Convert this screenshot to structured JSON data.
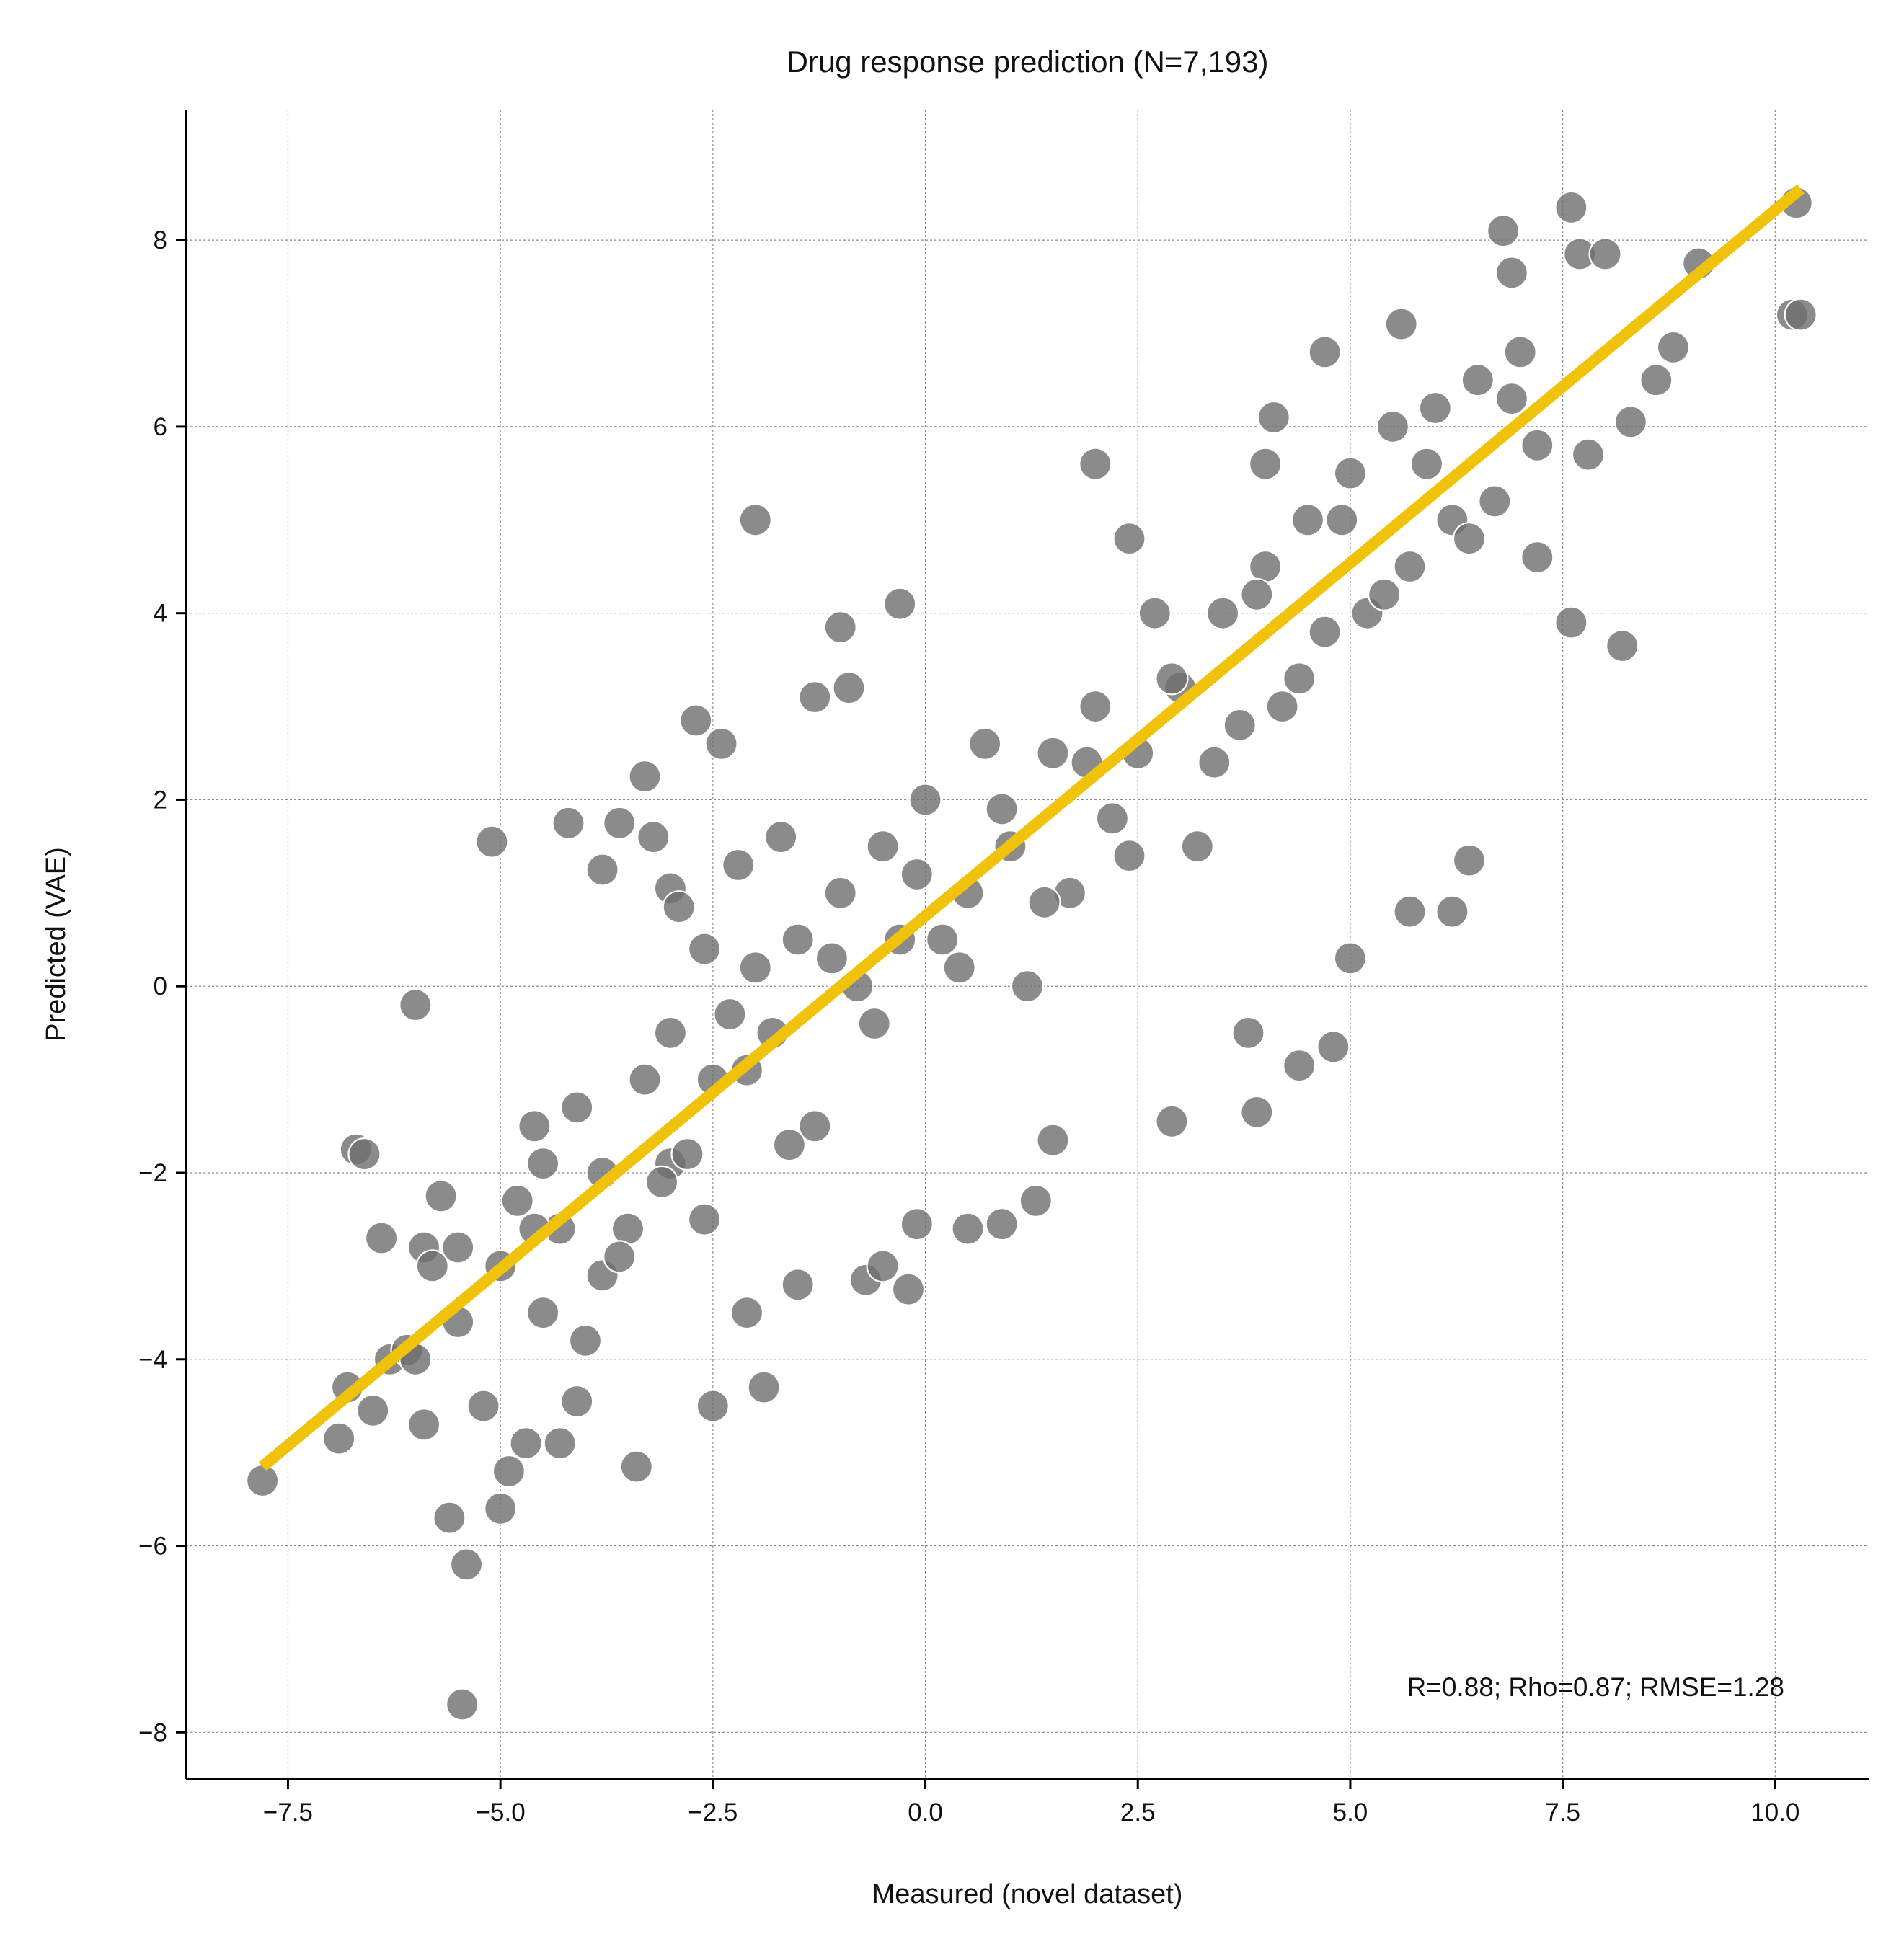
{
  "chart_data": {
    "type": "scatter",
    "title": "Drug response prediction (N=7,193)",
    "xlabel": "Measured (novel dataset)",
    "ylabel": "Predicted (VAE)",
    "xlim": [
      -8.7,
      11.1
    ],
    "ylim": [
      -8.5,
      9.4
    ],
    "x_ticks": [
      -7.5,
      -5.0,
      -2.5,
      0.0,
      2.5,
      5.0,
      7.5,
      10.0
    ],
    "x_tick_labels": [
      "−7.5",
      "−5.0",
      "−2.5",
      "0.0",
      "2.5",
      "5.0",
      "7.5",
      "10.0"
    ],
    "y_ticks": [
      -8,
      -6,
      -4,
      -2,
      0,
      2,
      4,
      6,
      8
    ],
    "y_tick_labels": [
      "−8",
      "−6",
      "−4",
      "−2",
      "0",
      "2",
      "4",
      "6",
      "8"
    ],
    "grid": true,
    "point_color": "#6e6e6e",
    "point_edge_color": "#ffffff",
    "line_color": "#f0c20a",
    "fit_line": {
      "x": [
        -7.8,
        10.3
      ],
      "y": [
        -5.15,
        8.55
      ]
    },
    "annotation": "R=0.88; Rho=0.87; RMSE=1.28",
    "annotation_position": "bottom-right",
    "series": [
      {
        "points": [
          [
            -7.8,
            -5.3
          ],
          [
            -6.9,
            -4.85
          ],
          [
            -6.8,
            -4.3
          ],
          [
            -6.7,
            -1.75
          ],
          [
            -6.6,
            -1.8
          ],
          [
            -6.5,
            -4.55
          ],
          [
            -6.4,
            -2.7
          ],
          [
            -6.3,
            -4.0
          ],
          [
            -6.1,
            -3.9
          ],
          [
            -6.0,
            -0.2
          ],
          [
            -5.9,
            -4.7
          ],
          [
            -5.9,
            -2.8
          ],
          [
            -5.8,
            -3.0
          ],
          [
            -5.7,
            -2.25
          ],
          [
            -5.6,
            -5.7
          ],
          [
            -5.5,
            -2.8
          ],
          [
            -5.4,
            -6.2
          ],
          [
            -5.45,
            -7.7
          ],
          [
            -5.2,
            -4.5
          ],
          [
            -5.1,
            1.55
          ],
          [
            -5.0,
            -5.6
          ],
          [
            -4.9,
            -5.2
          ],
          [
            -4.7,
            -4.9
          ],
          [
            -4.6,
            -1.5
          ],
          [
            -4.5,
            -3.5
          ],
          [
            -4.3,
            -4.9
          ],
          [
            -4.2,
            1.75
          ],
          [
            -4.1,
            -4.45
          ],
          [
            -3.8,
            1.25
          ],
          [
            -3.8,
            -3.1
          ],
          [
            -3.6,
            1.75
          ],
          [
            -3.4,
            -5.15
          ],
          [
            -3.3,
            2.25
          ],
          [
            -3.2,
            1.6
          ],
          [
            -3.0,
            1.05
          ],
          [
            -3.0,
            -1.9
          ],
          [
            -2.9,
            0.85
          ],
          [
            -2.7,
            2.85
          ],
          [
            -2.6,
            0.4
          ],
          [
            -2.5,
            -4.5
          ],
          [
            -2.4,
            2.6
          ],
          [
            -2.2,
            1.3
          ],
          [
            -2.1,
            -3.5
          ],
          [
            -2.0,
            5.0
          ],
          [
            -1.9,
            -4.3
          ],
          [
            -1.7,
            1.6
          ],
          [
            -1.5,
            -3.2
          ],
          [
            -1.3,
            3.1
          ],
          [
            -1.0,
            3.85
          ],
          [
            -0.9,
            3.2
          ],
          [
            -0.7,
            -3.15
          ],
          [
            -0.5,
            -3.0
          ],
          [
            -0.3,
            4.1
          ],
          [
            -0.2,
            -3.25
          ],
          [
            -0.1,
            -2.55
          ],
          [
            0.5,
            -2.6
          ],
          [
            0.9,
            -2.55
          ],
          [
            1.3,
            -2.3
          ],
          [
            1.5,
            -1.65
          ],
          [
            2.0,
            5.6
          ],
          [
            2.4,
            4.8
          ],
          [
            2.9,
            -1.45
          ],
          [
            3.8,
            -0.5
          ],
          [
            3.9,
            -1.35
          ],
          [
            4.0,
            5.6
          ],
          [
            4.1,
            6.1
          ],
          [
            4.4,
            -0.85
          ],
          [
            4.7,
            6.8
          ],
          [
            4.8,
            -0.65
          ],
          [
            5.0,
            0.3
          ],
          [
            5.6,
            7.1
          ],
          [
            5.7,
            0.8
          ],
          [
            6.2,
            0.8
          ],
          [
            6.4,
            1.35
          ],
          [
            6.8,
            8.1
          ],
          [
            6.9,
            7.65
          ],
          [
            7.2,
            4.6
          ],
          [
            7.6,
            3.9
          ],
          [
            7.6,
            8.35
          ],
          [
            7.7,
            7.85
          ],
          [
            7.8,
            5.7
          ],
          [
            8.0,
            7.85
          ],
          [
            8.2,
            3.65
          ],
          [
            8.3,
            6.05
          ],
          [
            8.6,
            6.5
          ],
          [
            8.8,
            6.85
          ],
          [
            9.1,
            7.75
          ],
          [
            10.2,
            7.2
          ],
          [
            10.25,
            8.4
          ],
          [
            10.3,
            7.2
          ],
          [
            -6.0,
            -4.0
          ],
          [
            -5.5,
            -3.6
          ],
          [
            -5.0,
            -3.0
          ],
          [
            -4.8,
            -2.3
          ],
          [
            -4.5,
            -1.9
          ],
          [
            -4.3,
            -2.6
          ],
          [
            -4.0,
            -3.8
          ],
          [
            -3.8,
            -2.0
          ],
          [
            -3.5,
            -2.6
          ],
          [
            -3.3,
            -1.0
          ],
          [
            -3.0,
            -0.5
          ],
          [
            -2.8,
            -1.8
          ],
          [
            -2.5,
            -1.0
          ],
          [
            -2.3,
            -0.3
          ],
          [
            -2.0,
            0.2
          ],
          [
            -1.8,
            -0.5
          ],
          [
            -1.5,
            0.5
          ],
          [
            -1.3,
            -1.5
          ],
          [
            -1.0,
            1.0
          ],
          [
            -0.8,
            0.0
          ],
          [
            -0.5,
            1.5
          ],
          [
            -0.3,
            0.5
          ],
          [
            0.0,
            2.0
          ],
          [
            0.2,
            0.5
          ],
          [
            0.5,
            1.0
          ],
          [
            0.7,
            2.6
          ],
          [
            1.0,
            1.5
          ],
          [
            1.2,
            0.0
          ],
          [
            1.5,
            2.5
          ],
          [
            1.7,
            1.0
          ],
          [
            2.0,
            3.0
          ],
          [
            2.2,
            1.8
          ],
          [
            2.5,
            2.5
          ],
          [
            2.7,
            4.0
          ],
          [
            3.0,
            3.2
          ],
          [
            3.2,
            1.5
          ],
          [
            3.5,
            4.0
          ],
          [
            3.7,
            2.8
          ],
          [
            4.0,
            4.5
          ],
          [
            4.2,
            3.0
          ],
          [
            4.5,
            5.0
          ],
          [
            4.7,
            3.8
          ],
          [
            5.0,
            5.5
          ],
          [
            5.2,
            4.0
          ],
          [
            5.5,
            6.0
          ],
          [
            5.7,
            4.5
          ],
          [
            6.0,
            6.2
          ],
          [
            6.2,
            5.0
          ],
          [
            6.5,
            6.5
          ],
          [
            6.7,
            5.2
          ],
          [
            7.0,
            6.8
          ],
          [
            7.2,
            5.8
          ],
          [
            -4.6,
            -2.6
          ],
          [
            -4.1,
            -1.3
          ],
          [
            -3.6,
            -2.9
          ],
          [
            -3.1,
            -2.1
          ],
          [
            -2.6,
            -2.5
          ],
          [
            -2.1,
            -0.9
          ],
          [
            -1.6,
            -1.7
          ],
          [
            -1.1,
            0.3
          ],
          [
            -0.6,
            -0.4
          ],
          [
            -0.1,
            1.2
          ],
          [
            0.4,
            0.2
          ],
          [
            0.9,
            1.9
          ],
          [
            1.4,
            0.9
          ],
          [
            1.9,
            2.4
          ],
          [
            2.4,
            1.4
          ],
          [
            2.9,
            3.3
          ],
          [
            3.4,
            2.4
          ],
          [
            3.9,
            4.2
          ],
          [
            4.4,
            3.3
          ],
          [
            4.9,
            5.0
          ],
          [
            5.4,
            4.2
          ],
          [
            5.9,
            5.6
          ],
          [
            6.4,
            4.8
          ],
          [
            6.9,
            6.3
          ]
        ]
      }
    ]
  }
}
